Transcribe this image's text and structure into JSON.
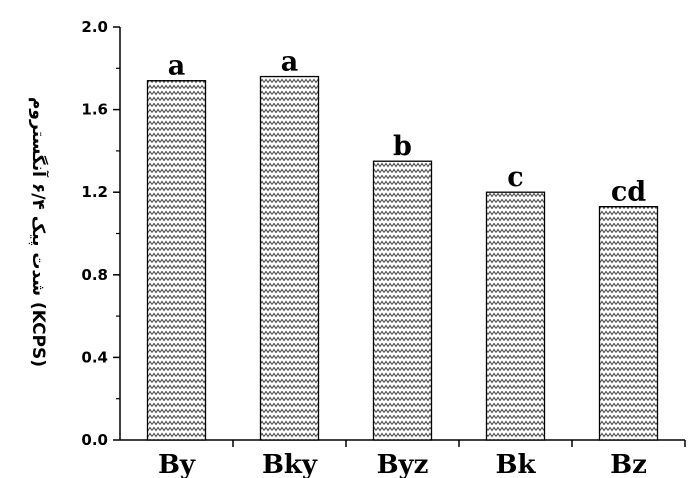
{
  "chart_data": {
    "type": "bar",
    "categories": [
      "By",
      "Bky",
      "Byz",
      "Bk",
      "Bz"
    ],
    "values": [
      1.74,
      1.76,
      1.35,
      1.2,
      1.13
    ],
    "significance_labels": [
      "a",
      "a",
      "b",
      "c",
      "cd"
    ],
    "ylabel": "شدت پیک ۶/۴ آنگستروم (KCPS)",
    "ylim": [
      0,
      2.0
    ],
    "yticks": [
      "0.0",
      "0.4",
      "0.8",
      "1.2",
      "1.6",
      "2.0"
    ],
    "grid": false,
    "legend": "none",
    "bar_fill": "zigzag hatch",
    "colors": {
      "bar_stroke": "#000000",
      "hatch": "#4a4a4a",
      "axis": "#000000"
    }
  }
}
